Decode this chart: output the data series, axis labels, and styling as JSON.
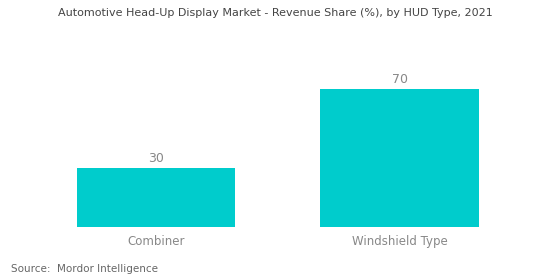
{
  "title": "Automotive Head-Up Display Market - Revenue Share (%), by HUD Type, 2021",
  "categories": [
    "Combiner",
    "Windshield Type"
  ],
  "values": [
    30,
    70
  ],
  "bar_color": "#00CCCC",
  "bar_width": 0.65,
  "value_labels": [
    "30",
    "70"
  ],
  "source_text": "Source:  Mordor Intelligence",
  "background_color": "#ffffff",
  "title_fontsize": 8.0,
  "label_fontsize": 8.5,
  "value_fontsize": 9,
  "source_fontsize": 7.5,
  "ylim": [
    0,
    90
  ],
  "xlim": [
    -0.55,
    1.55
  ]
}
